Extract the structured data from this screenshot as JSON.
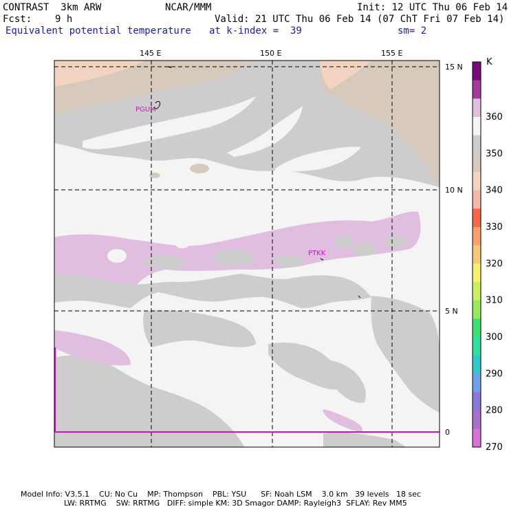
{
  "header": {
    "model": "CONTRAST  3km ARW",
    "center": "NCAR/MMM",
    "init": "Init: 12 UTC Thu 06 Feb 14",
    "fcst_label": "Fcst:",
    "fcst_value": "9 h",
    "valid": "Valid: 21 UTC Thu 06 Feb 14 (07 ChT Fri 07 Feb 14)",
    "field": "Equivalent potential temperature",
    "level": "at k-index =  39",
    "smooth": "sm= 2"
  },
  "map": {
    "lon_ticks": [
      "145 E",
      "150 E",
      "155 E"
    ],
    "lat_ticks": [
      "15 N",
      "10 N",
      "5 N",
      "0"
    ],
    "stations": [
      "PGUM",
      "PTKK"
    ],
    "colors": {
      "frame": "#000000",
      "grid": "#000000",
      "station": "#d010c8",
      "equator": "#d010c8"
    }
  },
  "legend": {
    "unit": "K",
    "labels": [
      "360",
      "350",
      "340",
      "330",
      "320",
      "310",
      "300",
      "290",
      "280",
      "270"
    ],
    "colors": [
      "#7a0a7a",
      "#a13a9a",
      "#e0bedf",
      "#f4f4f4",
      "#cdcdcd",
      "#d8c9bd",
      "#f3d4c0",
      "#f8b8a8",
      "#f86848",
      "#f8a070",
      "#f8c878",
      "#f8f070",
      "#c8f060",
      "#98e860",
      "#40e070",
      "#30e0a0",
      "#30c8c8",
      "#70a0e8",
      "#8878d8",
      "#a870c8",
      "#d870d8"
    ]
  },
  "footer": {
    "line1": "Model Info: V3.5.1    CU: No Cu    MP: Thompson    PBL: YSU      SF: Noah LSM    3.0 km   39 levels   18 sec",
    "line2": "                  LW: RRTMG    SW: RRTMG   DIFF: simple KM: 3D Smagor DAMP: Rayleigh3  SFLAY: Rev MM5"
  }
}
